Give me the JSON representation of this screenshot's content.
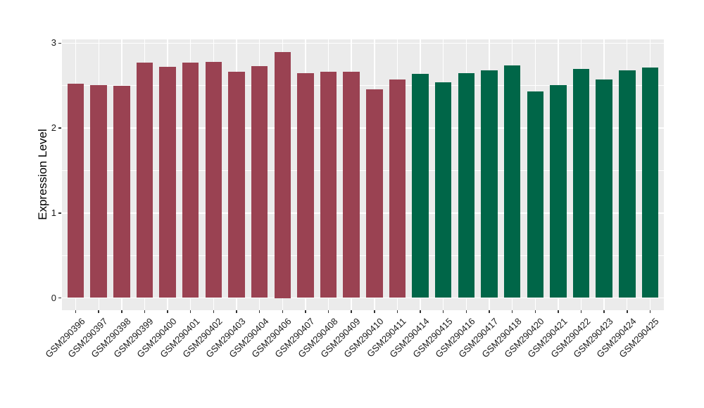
{
  "chart_data": {
    "type": "bar",
    "title": "",
    "xlabel": "",
    "ylabel": "Expression Level",
    "ylim": [
      0,
      3
    ],
    "yticks": [
      0,
      1,
      2,
      3
    ],
    "legend_position": "none",
    "grid": "white major and minor horizontal lines, white vertical lines at category centers",
    "panel_background": "#EBEBEB",
    "grid_color": "#FFFFFF",
    "axis_text_color": "#1A1A1A",
    "tick_mark_color": "#333333",
    "x_tick_label_rotation_deg": 45,
    "bar_width_fraction": 0.72,
    "series": [
      {
        "name": "red-group",
        "color": "#9A4252",
        "categories": [
          "GSM290396",
          "GSM290397",
          "GSM290398",
          "GSM290399",
          "GSM290400",
          "GSM290401",
          "GSM290402",
          "GSM290403",
          "GSM290404",
          "GSM290406",
          "GSM290407",
          "GSM290408",
          "GSM290409",
          "GSM290410",
          "GSM290411"
        ],
        "values": [
          2.52,
          2.51,
          2.5,
          2.77,
          2.72,
          2.77,
          2.78,
          2.66,
          2.73,
          2.9,
          2.65,
          2.66,
          2.66,
          2.46,
          2.57
        ]
      },
      {
        "name": "green-group",
        "color": "#006648",
        "categories": [
          "GSM290414",
          "GSM290415",
          "GSM290416",
          "GSM290417",
          "GSM290418",
          "GSM290420",
          "GSM290421",
          "GSM290422",
          "GSM290423",
          "GSM290424",
          "GSM290425"
        ],
        "values": [
          2.64,
          2.54,
          2.65,
          2.68,
          2.74,
          2.43,
          2.51,
          2.7,
          2.57,
          2.68,
          2.71
        ]
      }
    ]
  }
}
